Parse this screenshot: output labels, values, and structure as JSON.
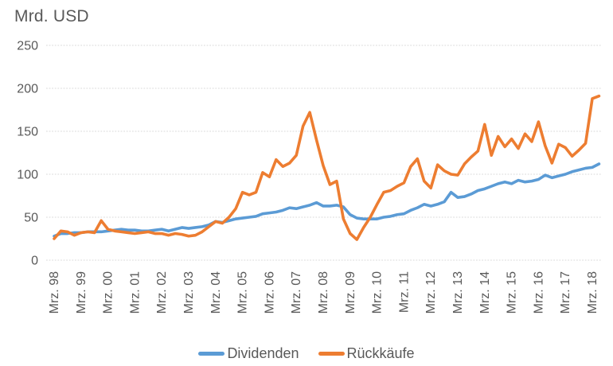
{
  "chart_data": {
    "type": "line",
    "title": "Mrd. USD",
    "x_unit": "quarter",
    "points_per_tick": 4,
    "x_tick_labels": [
      "Mrz. 98",
      "Mrz. 99",
      "Mrz. 00",
      "Mrz. 01",
      "Mrz. 02",
      "Mrz. 03",
      "Mrz. 04",
      "Mrz. 05",
      "Mrz. 06",
      "Mrz. 07",
      "Mrz. 08",
      "Mrz. 09",
      "Mrz. 10",
      "Mrz. 11",
      "Mrz. 12",
      "Mrz. 13",
      "Mrz. 14",
      "Mrz. 15",
      "Mrz. 16",
      "Mrz. 17",
      "Mrz. 18"
    ],
    "y_ticks": [
      0,
      50,
      100,
      150,
      200,
      250
    ],
    "ylim": [
      0,
      250
    ],
    "grid": "horizontal-dotted",
    "legend_position": "bottom-center",
    "text_color": "#595959",
    "gridline_color": "#D9D9D9",
    "background_color": "#FFFFFF",
    "series": [
      {
        "name": "Dividenden",
        "key": "dividenden",
        "color": "#5B9BD5",
        "values": [
          28,
          31,
          31,
          32,
          32,
          33,
          33,
          33,
          34,
          35,
          36,
          35,
          35,
          34,
          34,
          35,
          36,
          34,
          36,
          38,
          37,
          38,
          39,
          41,
          45,
          44,
          46,
          48,
          49,
          50,
          51,
          54,
          55,
          56,
          58,
          61,
          60,
          62,
          64,
          67,
          63,
          63,
          64,
          62,
          53,
          49,
          48,
          48,
          48,
          50,
          51,
          53,
          54,
          58,
          61,
          65,
          63,
          65,
          68,
          79,
          73,
          74,
          77,
          81,
          83,
          86,
          89,
          91,
          89,
          93,
          91,
          92,
          94,
          99,
          96,
          98,
          100,
          103,
          105,
          107,
          108,
          112
        ]
      },
      {
        "name": "Rückkäufe",
        "key": "rueckkaeufe",
        "color": "#ED7D31",
        "values": [
          25,
          34,
          33,
          29,
          32,
          33,
          32,
          46,
          36,
          34,
          33,
          32,
          31,
          32,
          33,
          31,
          31,
          29,
          31,
          30,
          28,
          29,
          33,
          39,
          45,
          43,
          50,
          60,
          79,
          76,
          79,
          102,
          97,
          117,
          109,
          113,
          122,
          156,
          172,
          140,
          110,
          88,
          92,
          48,
          31,
          24,
          38,
          50,
          65,
          79,
          81,
          86,
          90,
          109,
          118,
          92,
          84,
          111,
          104,
          100,
          99,
          112,
          120,
          127,
          158,
          122,
          144,
          132,
          141,
          130,
          147,
          138,
          161,
          133,
          113,
          135,
          131,
          121,
          128,
          136,
          188,
          191
        ]
      }
    ]
  }
}
